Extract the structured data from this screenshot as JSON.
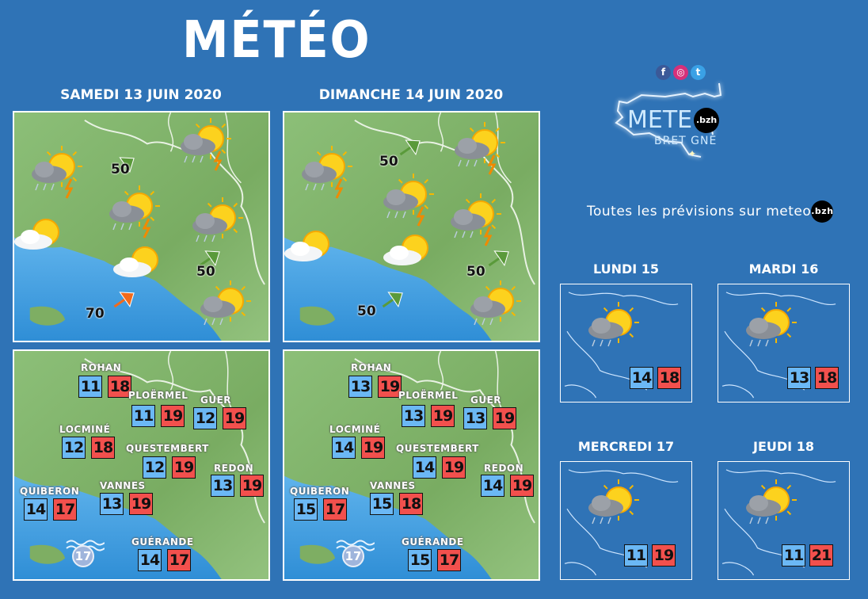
{
  "title": "MÉTÉO",
  "days": [
    {
      "label": "SAMEDI 13 JUIN 2020",
      "winds": [
        {
          "speed": "50",
          "color": "#5a9a3a"
        },
        {
          "speed": "50",
          "color": "#5a9a3a"
        },
        {
          "speed": "70",
          "color": "#f26a1b"
        }
      ],
      "cities": [
        {
          "name": "ROHAN",
          "min": "11",
          "max": "18"
        },
        {
          "name": "PLOËRMEL",
          "min": "11",
          "max": "19"
        },
        {
          "name": "GUER",
          "min": "12",
          "max": "19"
        },
        {
          "name": "LOCMINÉ",
          "min": "12",
          "max": "18"
        },
        {
          "name": "QUESTEMBERT",
          "min": "12",
          "max": "19"
        },
        {
          "name": "REDON",
          "min": "13",
          "max": "19"
        },
        {
          "name": "QUIBERON",
          "min": "14",
          "max": "17"
        },
        {
          "name": "VANNES",
          "min": "13",
          "max": "19"
        },
        {
          "name": "GUÉRANDE",
          "min": "14",
          "max": "17"
        }
      ],
      "sea_temp": "17"
    },
    {
      "label": "DIMANCHE 14 JUIN 2020",
      "winds": [
        {
          "speed": "50",
          "color": "#5a9a3a"
        },
        {
          "speed": "50",
          "color": "#5a9a3a"
        },
        {
          "speed": "50",
          "color": "#5a9a3a"
        }
      ],
      "cities": [
        {
          "name": "ROHAN",
          "min": "13",
          "max": "19"
        },
        {
          "name": "PLOËRMEL",
          "min": "13",
          "max": "19"
        },
        {
          "name": "GUER",
          "min": "13",
          "max": "19"
        },
        {
          "name": "LOCMINÉ",
          "min": "14",
          "max": "19"
        },
        {
          "name": "QUESTEMBERT",
          "min": "14",
          "max": "19"
        },
        {
          "name": "REDON",
          "min": "14",
          "max": "19"
        },
        {
          "name": "QUIBERON",
          "min": "15",
          "max": "17"
        },
        {
          "name": "VANNES",
          "min": "15",
          "max": "18"
        },
        {
          "name": "GUÉRANDE",
          "min": "15",
          "max": "17"
        }
      ],
      "sea_temp": "17"
    }
  ],
  "forecast": [
    {
      "label": "LUNDI 15",
      "min": "14",
      "max": "18"
    },
    {
      "label": "MARDI 16",
      "min": "13",
      "max": "18"
    },
    {
      "label": "MERCREDI 17",
      "min": "11",
      "max": "19"
    },
    {
      "label": "JEUDI 18",
      "min": "11",
      "max": "21"
    }
  ],
  "logo": {
    "line1": "METE",
    "line2": "BRET GNE",
    "badge": ".bzh"
  },
  "social": [
    {
      "name": "facebook",
      "glyph": "f",
      "color": "#3b5998"
    },
    {
      "name": "instagram",
      "glyph": "◎",
      "color": "#d6307a"
    },
    {
      "name": "twitter",
      "glyph": "t",
      "color": "#3aa1e6"
    }
  ],
  "promo": {
    "text": "Toutes les prévisions sur meteo",
    "badge": ".bzh"
  },
  "colors": {
    "background": "#2f73b6",
    "min_temp": "#6bb8f5",
    "max_temp": "#f2504d"
  }
}
